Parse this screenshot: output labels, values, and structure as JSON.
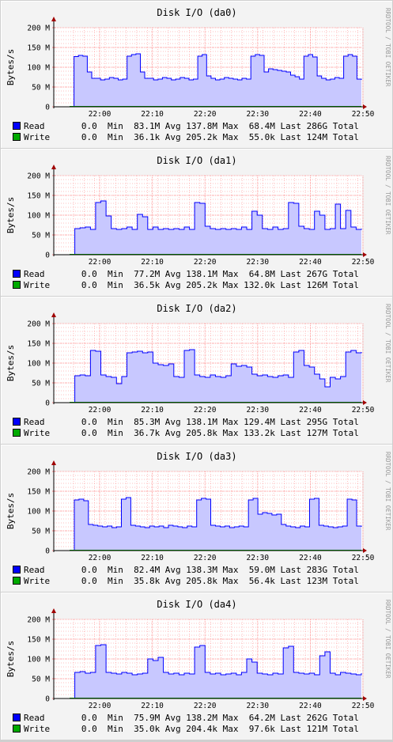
{
  "colors": {
    "read": "#0000ff",
    "read_fill": "#c8c8ff",
    "write": "#00aa00",
    "grid": "#ff8080",
    "axis": "#000000"
  },
  "watermark": "RRDTOOL / TOBI OETIKER",
  "chart_data": [
    {
      "type": "area",
      "title": "Disk I/O (da0)",
      "ylabel": "Bytes/s",
      "ylim": [
        0,
        200
      ],
      "yticks": [
        "0",
        "50 M",
        "100 M",
        "150 M",
        "200 M"
      ],
      "xticks": [
        "22:00",
        "22:10",
        "22:20",
        "22:30",
        "22:40",
        "22:50"
      ],
      "legend": [
        {
          "name": "Read",
          "min": "0.0",
          "avg": "83.1M",
          "max": "137.8M",
          "last": "68.4M",
          "total": "286G"
        },
        {
          "name": "Write",
          "min": "0.0",
          "avg": "36.1k",
          "max": "205.2k",
          "last": "55.0k",
          "total": "124M"
        }
      ],
      "series_read_mb": [
        0,
        0,
        0,
        0,
        127,
        130,
        128,
        88,
        72,
        72,
        68,
        70,
        74,
        72,
        68,
        70,
        128,
        132,
        134,
        88,
        72,
        72,
        68,
        70,
        74,
        72,
        68,
        70,
        74,
        72,
        68,
        70,
        128,
        132,
        78,
        72,
        68,
        70,
        74,
        72,
        70,
        68,
        72,
        70,
        128,
        132,
        130,
        88,
        96,
        94,
        92,
        90,
        88,
        80,
        76,
        70,
        128,
        132,
        126,
        78,
        72,
        68,
        70,
        74,
        72,
        128,
        132,
        128,
        70,
        68
      ]
    },
    {
      "type": "area",
      "title": "Disk I/O (da1)",
      "ylabel": "Bytes/s",
      "ylim": [
        0,
        200
      ],
      "yticks": [
        "0",
        "50 M",
        "100 M",
        "150 M",
        "200 M"
      ],
      "xticks": [
        "22:00",
        "22:10",
        "22:20",
        "22:30",
        "22:40",
        "22:50"
      ],
      "legend": [
        {
          "name": "Read",
          "min": "0.0",
          "avg": "77.2M",
          "max": "138.1M",
          "last": "64.8M",
          "total": "267G"
        },
        {
          "name": "Write",
          "min": "0.0",
          "avg": "36.5k",
          "max": "205.2k",
          "last": "132.0k",
          "total": "126M"
        }
      ],
      "series_read_mb": [
        0,
        0,
        0,
        0,
        66,
        68,
        70,
        64,
        132,
        136,
        98,
        66,
        64,
        66,
        70,
        64,
        102,
        96,
        64,
        70,
        64,
        66,
        64,
        66,
        64,
        70,
        64,
        132,
        130,
        72,
        66,
        64,
        66,
        64,
        66,
        64,
        70,
        64,
        110,
        100,
        66,
        64,
        70,
        64,
        66,
        132,
        130,
        72,
        66,
        64,
        110,
        100,
        64,
        66,
        128,
        66,
        112,
        70,
        64,
        66
      ]
    },
    {
      "type": "area",
      "title": "Disk I/O (da2)",
      "ylabel": "Bytes/s",
      "ylim": [
        0,
        200
      ],
      "yticks": [
        "0",
        "50 M",
        "100 M",
        "150 M",
        "200 M"
      ],
      "xticks": [
        "22:00",
        "22:10",
        "22:20",
        "22:30",
        "22:40",
        "22:50"
      ],
      "legend": [
        {
          "name": "Read",
          "min": "0.0",
          "avg": "85.3M",
          "max": "138.1M",
          "last": "129.4M",
          "total": "295G"
        },
        {
          "name": "Write",
          "min": "0.0",
          "avg": "36.7k",
          "max": "205.8k",
          "last": "133.2k",
          "total": "127M"
        }
      ],
      "series_read_mb": [
        0,
        0,
        0,
        0,
        68,
        70,
        68,
        132,
        130,
        70,
        66,
        64,
        48,
        66,
        126,
        128,
        130,
        126,
        128,
        100,
        96,
        94,
        98,
        66,
        64,
        132,
        134,
        70,
        66,
        64,
        70,
        66,
        64,
        68,
        98,
        92,
        94,
        90,
        72,
        68,
        70,
        66,
        64,
        68,
        70,
        64,
        128,
        132,
        94,
        90,
        72,
        60,
        40,
        64,
        60,
        66,
        128,
        132,
        126,
        128
      ]
    },
    {
      "type": "area",
      "title": "Disk I/O (da3)",
      "ylabel": "Bytes/s",
      "ylim": [
        0,
        200
      ],
      "yticks": [
        "0",
        "50 M",
        "100 M",
        "150 M",
        "200 M"
      ],
      "xticks": [
        "22:00",
        "22:10",
        "22:20",
        "22:30",
        "22:40",
        "22:50"
      ],
      "legend": [
        {
          "name": "Read",
          "min": "0.0",
          "avg": "82.4M",
          "max": "138.3M",
          "last": "59.0M",
          "total": "283G"
        },
        {
          "name": "Write",
          "min": "0.0",
          "avg": "35.8k",
          "max": "205.8k",
          "last": "56.4k",
          "total": "123M"
        }
      ],
      "series_read_mb": [
        0,
        0,
        0,
        0,
        128,
        130,
        126,
        66,
        64,
        62,
        60,
        62,
        58,
        60,
        130,
        134,
        64,
        62,
        60,
        58,
        62,
        60,
        62,
        58,
        64,
        62,
        60,
        58,
        62,
        60,
        128,
        132,
        130,
        64,
        62,
        60,
        62,
        58,
        60,
        62,
        60,
        128,
        132,
        92,
        96,
        94,
        90,
        92,
        66,
        62,
        60,
        58,
        62,
        60,
        130,
        132,
        64,
        62,
        60,
        58,
        60,
        62,
        130,
        128,
        62,
        60
      ]
    },
    {
      "type": "area",
      "title": "Disk I/O (da4)",
      "ylabel": "Bytes/s",
      "ylim": [
        0,
        200
      ],
      "yticks": [
        "0",
        "50 M",
        "100 M",
        "150 M",
        "200 M"
      ],
      "xticks": [
        "22:00",
        "22:10",
        "22:20",
        "22:30",
        "22:40",
        "22:50"
      ],
      "legend": [
        {
          "name": "Read",
          "min": "0.0",
          "avg": "75.9M",
          "max": "138.2M",
          "last": "64.2M",
          "total": "262G"
        },
        {
          "name": "Write",
          "min": "0.0",
          "avg": "35.0k",
          "max": "204.4k",
          "last": "97.6k",
          "total": "121M"
        }
      ],
      "series_read_mb": [
        0,
        0,
        0,
        0,
        66,
        68,
        64,
        66,
        134,
        136,
        66,
        64,
        62,
        66,
        64,
        60,
        62,
        64,
        100,
        96,
        104,
        66,
        62,
        64,
        60,
        64,
        62,
        130,
        134,
        66,
        62,
        64,
        60,
        62,
        64,
        60,
        66,
        100,
        92,
        64,
        62,
        60,
        64,
        62,
        128,
        132,
        66,
        64,
        62,
        64,
        60,
        108,
        118,
        64,
        60,
        66,
        64,
        62,
        60,
        64
      ]
    }
  ]
}
